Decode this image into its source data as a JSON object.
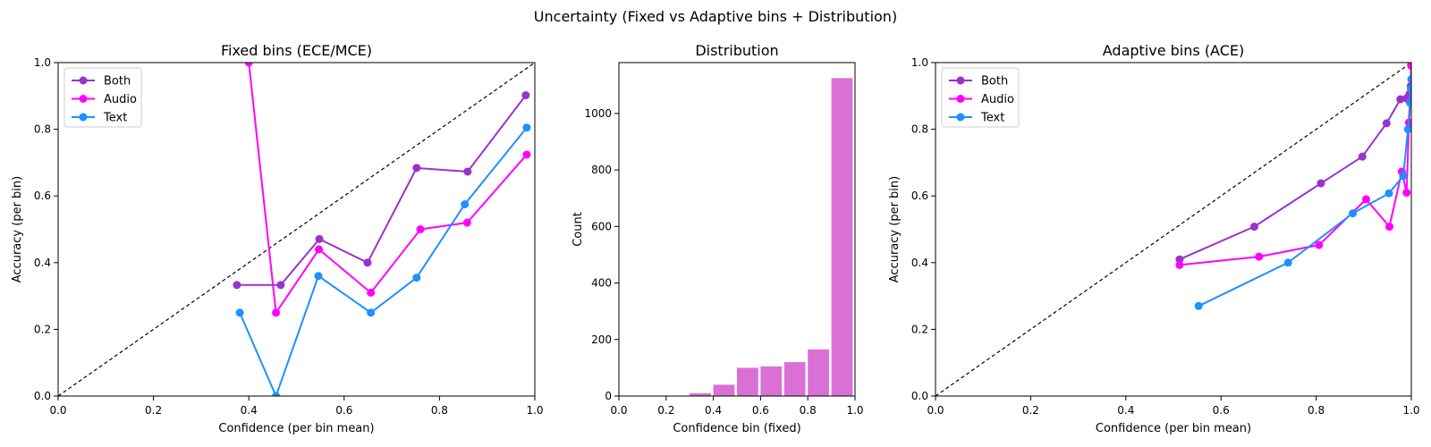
{
  "suptitle": "Uncertainty (Fixed vs Adaptive bins + Distribution)",
  "colors": {
    "both": "#9932CC",
    "audio": "#FF00FF",
    "text": "#1E90FF",
    "hist": "#DA70D6"
  },
  "chart_data": [
    {
      "type": "line",
      "title": "Fixed bins (ECE/MCE)",
      "xlabel": "Confidence (per bin mean)",
      "ylabel": "Accuracy (per bin)",
      "xlim": [
        0,
        1
      ],
      "ylim": [
        0,
        1
      ],
      "xticks": [
        "0.0",
        "0.2",
        "0.4",
        "0.6",
        "0.8",
        "1.0"
      ],
      "yticks": [
        "0.0",
        "0.2",
        "0.4",
        "0.6",
        "0.8",
        "1.0"
      ],
      "diagonal": true,
      "legend": "top-left",
      "series": [
        {
          "name": "Both",
          "color": "#9932CC",
          "x": [
            0.375,
            0.467,
            0.548,
            0.649,
            0.752,
            0.859,
            0.981
          ],
          "y": [
            0.333,
            0.333,
            0.471,
            0.4,
            0.684,
            0.673,
            0.902
          ]
        },
        {
          "name": "Audio",
          "color": "#FF00FF",
          "x": [
            0.4,
            0.457,
            0.547,
            0.656,
            0.76,
            0.858,
            0.983
          ],
          "y": [
            1.0,
            0.25,
            0.44,
            0.31,
            0.5,
            0.52,
            0.724
          ]
        },
        {
          "name": "Text",
          "color": "#1E90FF",
          "x": [
            0.381,
            0.457,
            0.546,
            0.656,
            0.752,
            0.853,
            0.983
          ],
          "y": [
            0.25,
            0.0,
            0.36,
            0.25,
            0.355,
            0.575,
            0.805
          ]
        }
      ]
    },
    {
      "type": "bar",
      "title": "Distribution",
      "xlabel": "Confidence bin (fixed)",
      "ylabel": "Count",
      "xlim": [
        0,
        1
      ],
      "ylim": [
        0,
        1180
      ],
      "xticks": [
        "0.0",
        "0.2",
        "0.4",
        "0.6",
        "0.8",
        "1.0"
      ],
      "yticks": [
        "0",
        "200",
        "400",
        "600",
        "800",
        "1000"
      ],
      "bin_starts": [
        0.0,
        0.1,
        0.2,
        0.3,
        0.4,
        0.5,
        0.6,
        0.7,
        0.8,
        0.9
      ],
      "bin_width": 0.1,
      "values": [
        0,
        0,
        0,
        10,
        40,
        100,
        105,
        120,
        165,
        1125
      ]
    },
    {
      "type": "line",
      "title": "Adaptive bins (ACE)",
      "xlabel": "Confidence (per bin mean)",
      "ylabel": "Accuracy (per bin)",
      "xlim": [
        0,
        1
      ],
      "ylim": [
        0,
        1
      ],
      "xticks": [
        "0.0",
        "0.2",
        "0.4",
        "0.6",
        "0.8",
        "1.0"
      ],
      "yticks": [
        "0.0",
        "0.2",
        "0.4",
        "0.6",
        "0.8",
        "1.0"
      ],
      "diagonal": true,
      "legend": "top-left",
      "series": [
        {
          "name": "Both",
          "color": "#9932CC",
          "x": [
            0.513,
            0.67,
            0.81,
            0.897,
            0.948,
            0.977,
            0.99,
            0.996,
            0.999,
            1.0
          ],
          "y": [
            0.41,
            0.508,
            0.638,
            0.718,
            0.818,
            0.89,
            0.893,
            0.905,
            0.93,
            1.0
          ]
        },
        {
          "name": "Audio",
          "color": "#FF00FF",
          "x": [
            0.513,
            0.68,
            0.806,
            0.905,
            0.954,
            0.98,
            0.99,
            0.995,
            0.998,
            1.0
          ],
          "y": [
            0.393,
            0.418,
            0.453,
            0.59,
            0.508,
            0.673,
            0.61,
            0.82,
            0.89,
            0.99
          ]
        },
        {
          "name": "Text",
          "color": "#1E90FF",
          "x": [
            0.553,
            0.741,
            0.877,
            0.953,
            0.983,
            0.993,
            0.997,
            0.999,
            1.0
          ],
          "y": [
            0.27,
            0.4,
            0.548,
            0.608,
            0.66,
            0.8,
            0.88,
            0.92,
            0.95
          ]
        }
      ]
    }
  ]
}
